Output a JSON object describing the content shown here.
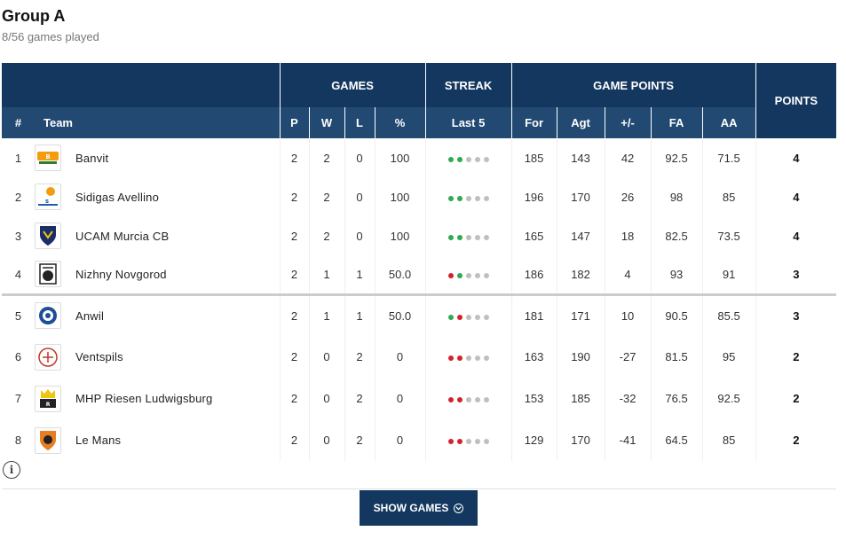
{
  "header": {
    "title": "Group A",
    "subtitle": "8/56 games played"
  },
  "table": {
    "groups": {
      "games": "GAMES",
      "streak": "STREAK",
      "game_points": "GAME POINTS",
      "points": "POINTS"
    },
    "columns": {
      "rank": "#",
      "team": "Team",
      "p": "P",
      "w": "W",
      "l": "L",
      "pct": "%",
      "last5": "Last 5",
      "for": "For",
      "agt": "Agt",
      "diff": "+/-",
      "fa": "FA",
      "aa": "AA"
    },
    "rows": [
      {
        "rank": "1",
        "team": "Banvit",
        "logo": "banvit-logo",
        "p": "2",
        "w": "2",
        "l": "0",
        "pct": "100",
        "streak": [
          "W",
          "W",
          "-",
          "-",
          "-"
        ],
        "for": "185",
        "agt": "143",
        "diff": "42",
        "fa": "92.5",
        "aa": "71.5",
        "pts": "4"
      },
      {
        "rank": "2",
        "team": "Sidigas Avellino",
        "logo": "sidigas-logo",
        "p": "2",
        "w": "2",
        "l": "0",
        "pct": "100",
        "streak": [
          "W",
          "W",
          "-",
          "-",
          "-"
        ],
        "for": "196",
        "agt": "170",
        "diff": "26",
        "fa": "98",
        "aa": "85",
        "pts": "4"
      },
      {
        "rank": "3",
        "team": "UCAM Murcia CB",
        "logo": "ucam-logo",
        "p": "2",
        "w": "2",
        "l": "0",
        "pct": "100",
        "streak": [
          "W",
          "W",
          "-",
          "-",
          "-"
        ],
        "for": "165",
        "agt": "147",
        "diff": "18",
        "fa": "82.5",
        "aa": "73.5",
        "pts": "4"
      },
      {
        "rank": "4",
        "team": "Nizhny Novgorod",
        "logo": "nizhny-logo",
        "p": "2",
        "w": "1",
        "l": "1",
        "pct": "50.0",
        "streak": [
          "L",
          "W",
          "-",
          "-",
          "-"
        ],
        "for": "186",
        "agt": "182",
        "diff": "4",
        "fa": "93",
        "aa": "91",
        "pts": "3"
      },
      {
        "rank": "5",
        "team": "Anwil",
        "logo": "anwil-logo",
        "p": "2",
        "w": "1",
        "l": "1",
        "pct": "50.0",
        "streak": [
          "W",
          "L",
          "-",
          "-",
          "-"
        ],
        "for": "181",
        "agt": "171",
        "diff": "10",
        "fa": "90.5",
        "aa": "85.5",
        "pts": "3"
      },
      {
        "rank": "6",
        "team": "Ventspils",
        "logo": "ventspils-logo",
        "p": "2",
        "w": "0",
        "l": "2",
        "pct": "0",
        "streak": [
          "L",
          "L",
          "-",
          "-",
          "-"
        ],
        "for": "163",
        "agt": "190",
        "diff": "-27",
        "fa": "81.5",
        "aa": "95",
        "pts": "2"
      },
      {
        "rank": "7",
        "team": "MHP Riesen Ludwigsburg",
        "logo": "riesen-logo",
        "p": "2",
        "w": "0",
        "l": "2",
        "pct": "0",
        "streak": [
          "L",
          "L",
          "-",
          "-",
          "-"
        ],
        "for": "153",
        "agt": "185",
        "diff": "-32",
        "fa": "76.5",
        "aa": "92.5",
        "pts": "2"
      },
      {
        "rank": "8",
        "team": "Le Mans",
        "logo": "lemans-logo",
        "p": "2",
        "w": "0",
        "l": "2",
        "pct": "0",
        "streak": [
          "L",
          "L",
          "-",
          "-",
          "-"
        ],
        "for": "129",
        "agt": "170",
        "diff": "-41",
        "fa": "64.5",
        "aa": "85",
        "pts": "2"
      }
    ]
  },
  "footer": {
    "info_icon": "info-icon",
    "show_games_label": "SHOW GAMES",
    "show_games_icon": "chevron-down-circle-icon"
  },
  "colors": {
    "header_dark": "#13375e",
    "header_light": "#214971",
    "win": "#2eaa4f",
    "loss": "#d2232a",
    "none": "#bfbfbf"
  }
}
